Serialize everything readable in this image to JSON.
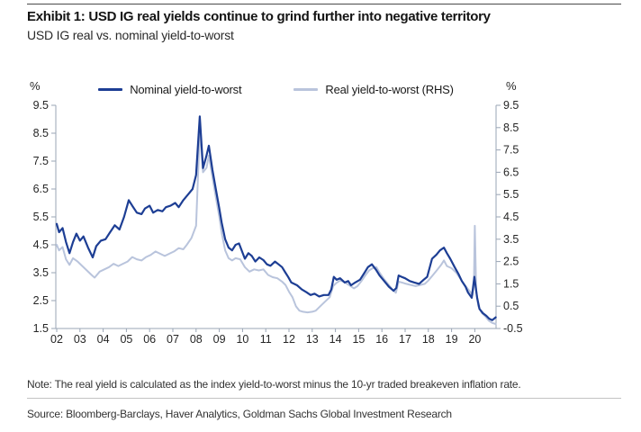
{
  "header": {
    "title": "Exhibit 1: USD IG real yields continue to grind further into negative territory",
    "subtitle": "USD IG real vs. nominal yield-to-worst"
  },
  "footer": {
    "note": "Note: The real yield is calculated as the index yield-to-worst minus the 10-yr traded breakeven inflation rate.",
    "source": "Source: Bloomberg-Barclays, Haver Analytics, Goldman Sachs Global Investment Research"
  },
  "colors": {
    "nominal_line": "#1D3E94",
    "real_line": "#B9C4DC",
    "axis": "#9AA5B5",
    "tick_text": "#262626"
  },
  "chart_data": {
    "type": "line",
    "title": "Exhibit 1: USD IG real yields continue to grind further into negative territory",
    "subtitle": "USD IG real vs. nominal yield-to-worst",
    "grid": false,
    "legend_position": "top-center",
    "left_axis": {
      "label": "%",
      "range": [
        1.5,
        9.5
      ],
      "tick_labels": [
        "9.5",
        "8.5",
        "7.5",
        "6.5",
        "5.5",
        "4.5",
        "3.5",
        "2.5",
        "1.5"
      ]
    },
    "right_axis": {
      "label": "%",
      "range": [
        -0.5,
        9.5
      ],
      "tick_labels": [
        "9.5",
        "8.5",
        "7.5",
        "6.5",
        "5.5",
        "4.5",
        "3.5",
        "2.5",
        "1.5",
        "0.5",
        "-0.5"
      ]
    },
    "x_axis": {
      "tick_labels": [
        "02",
        "03",
        "04",
        "05",
        "06",
        "07",
        "08",
        "09",
        "10",
        "11",
        "12",
        "13",
        "14",
        "15",
        "16",
        "17",
        "18",
        "19",
        "20"
      ],
      "tick_years": [
        2002,
        2003,
        2004,
        2005,
        2006,
        2007,
        2008,
        2009,
        2010,
        2011,
        2012,
        2013,
        2014,
        2015,
        2016,
        2017,
        2018,
        2019,
        2020
      ]
    },
    "series": [
      {
        "name": "Real yield-to-worst (RHS)",
        "axis": "right",
        "color": "#B9C4DC",
        "width": 2,
        "points": [
          [
            2002.0,
            3.25
          ],
          [
            2002.1,
            3.0
          ],
          [
            2002.25,
            3.15
          ],
          [
            2002.4,
            2.6
          ],
          [
            2002.55,
            2.35
          ],
          [
            2002.7,
            2.65
          ],
          [
            2002.9,
            2.5
          ],
          [
            2003.1,
            2.3
          ],
          [
            2003.3,
            2.1
          ],
          [
            2003.5,
            1.9
          ],
          [
            2003.63,
            1.78
          ],
          [
            2003.85,
            2.05
          ],
          [
            2004.05,
            2.15
          ],
          [
            2004.25,
            2.25
          ],
          [
            2004.45,
            2.4
          ],
          [
            2004.65,
            2.3
          ],
          [
            2004.85,
            2.4
          ],
          [
            2005.05,
            2.5
          ],
          [
            2005.25,
            2.7
          ],
          [
            2005.45,
            2.6
          ],
          [
            2005.65,
            2.55
          ],
          [
            2005.85,
            2.7
          ],
          [
            2006.05,
            2.8
          ],
          [
            2006.25,
            2.95
          ],
          [
            2006.45,
            2.85
          ],
          [
            2006.65,
            2.75
          ],
          [
            2006.85,
            2.85
          ],
          [
            2007.05,
            2.95
          ],
          [
            2007.25,
            3.1
          ],
          [
            2007.45,
            3.05
          ],
          [
            2007.6,
            3.25
          ],
          [
            2007.8,
            3.55
          ],
          [
            2008.0,
            4.1
          ],
          [
            2008.16,
            8.4
          ],
          [
            2008.3,
            6.5
          ],
          [
            2008.45,
            6.7
          ],
          [
            2008.55,
            7.25
          ],
          [
            2008.7,
            6.3
          ],
          [
            2008.85,
            5.4
          ],
          [
            2009.0,
            4.5
          ],
          [
            2009.1,
            3.8
          ],
          [
            2009.25,
            3.0
          ],
          [
            2009.4,
            2.65
          ],
          [
            2009.55,
            2.55
          ],
          [
            2009.7,
            2.65
          ],
          [
            2009.9,
            2.6
          ],
          [
            2010.1,
            2.25
          ],
          [
            2010.3,
            2.05
          ],
          [
            2010.5,
            2.15
          ],
          [
            2010.7,
            2.1
          ],
          [
            2010.9,
            2.15
          ],
          [
            2011.1,
            1.9
          ],
          [
            2011.3,
            1.8
          ],
          [
            2011.5,
            1.75
          ],
          [
            2011.7,
            1.6
          ],
          [
            2011.85,
            1.45
          ],
          [
            2012.0,
            1.15
          ],
          [
            2012.15,
            0.9
          ],
          [
            2012.3,
            0.5
          ],
          [
            2012.45,
            0.3
          ],
          [
            2012.6,
            0.25
          ],
          [
            2012.8,
            0.22
          ],
          [
            2013.0,
            0.25
          ],
          [
            2013.15,
            0.3
          ],
          [
            2013.35,
            0.5
          ],
          [
            2013.55,
            0.7
          ],
          [
            2013.75,
            0.9
          ],
          [
            2013.9,
            1.4
          ],
          [
            2014.05,
            1.55
          ],
          [
            2014.2,
            1.65
          ],
          [
            2014.35,
            1.6
          ],
          [
            2014.5,
            1.5
          ],
          [
            2014.65,
            1.4
          ],
          [
            2014.8,
            1.3
          ],
          [
            2014.95,
            1.4
          ],
          [
            2015.1,
            1.6
          ],
          [
            2015.3,
            1.9
          ],
          [
            2015.45,
            2.1
          ],
          [
            2015.6,
            2.2
          ],
          [
            2015.76,
            2.25
          ],
          [
            2015.9,
            2.0
          ],
          [
            2016.1,
            1.7
          ],
          [
            2016.3,
            1.45
          ],
          [
            2016.45,
            1.25
          ],
          [
            2016.6,
            1.1
          ],
          [
            2016.72,
            1.6
          ],
          [
            2016.9,
            1.55
          ],
          [
            2017.05,
            1.5
          ],
          [
            2017.25,
            1.45
          ],
          [
            2017.45,
            1.4
          ],
          [
            2017.65,
            1.45
          ],
          [
            2017.85,
            1.5
          ],
          [
            2018.0,
            1.65
          ],
          [
            2018.2,
            1.9
          ],
          [
            2018.4,
            2.15
          ],
          [
            2018.55,
            2.35
          ],
          [
            2018.67,
            2.55
          ],
          [
            2018.8,
            2.3
          ],
          [
            2019.0,
            2.2
          ],
          [
            2019.2,
            2.0
          ],
          [
            2019.4,
            1.7
          ],
          [
            2019.6,
            1.4
          ],
          [
            2019.8,
            1.15
          ],
          [
            2019.9,
            1.0
          ],
          [
            2019.96,
            1.4
          ],
          [
            2020.0,
            4.1
          ],
          [
            2020.06,
            1.2
          ],
          [
            2020.15,
            0.5
          ],
          [
            2020.3,
            0.2
          ],
          [
            2020.45,
            0.05
          ],
          [
            2020.6,
            -0.15
          ],
          [
            2020.75,
            -0.25
          ],
          [
            2020.9,
            -0.3
          ]
        ]
      },
      {
        "name": "Nominal yield-to-worst",
        "axis": "left",
        "color": "#1D3E94",
        "width": 2.2,
        "points": [
          [
            2002.0,
            5.25
          ],
          [
            2002.1,
            4.95
          ],
          [
            2002.25,
            5.1
          ],
          [
            2002.4,
            4.6
          ],
          [
            2002.55,
            4.2
          ],
          [
            2002.7,
            4.6
          ],
          [
            2002.85,
            4.9
          ],
          [
            2003.0,
            4.65
          ],
          [
            2003.15,
            4.8
          ],
          [
            2003.35,
            4.4
          ],
          [
            2003.55,
            4.05
          ],
          [
            2003.7,
            4.45
          ],
          [
            2003.9,
            4.65
          ],
          [
            2004.1,
            4.7
          ],
          [
            2004.3,
            4.95
          ],
          [
            2004.5,
            5.2
          ],
          [
            2004.7,
            5.05
          ],
          [
            2004.9,
            5.5
          ],
          [
            2005.1,
            6.1
          ],
          [
            2005.25,
            5.9
          ],
          [
            2005.45,
            5.65
          ],
          [
            2005.65,
            5.6
          ],
          [
            2005.8,
            5.8
          ],
          [
            2006.0,
            5.9
          ],
          [
            2006.15,
            5.65
          ],
          [
            2006.35,
            5.75
          ],
          [
            2006.55,
            5.7
          ],
          [
            2006.7,
            5.85
          ],
          [
            2006.9,
            5.9
          ],
          [
            2007.1,
            6.0
          ],
          [
            2007.25,
            5.85
          ],
          [
            2007.45,
            6.1
          ],
          [
            2007.65,
            6.3
          ],
          [
            2007.85,
            6.5
          ],
          [
            2008.0,
            7.0
          ],
          [
            2008.16,
            9.1
          ],
          [
            2008.3,
            7.25
          ],
          [
            2008.45,
            7.7
          ],
          [
            2008.55,
            8.05
          ],
          [
            2008.7,
            7.2
          ],
          [
            2008.85,
            6.5
          ],
          [
            2009.0,
            5.8
          ],
          [
            2009.1,
            5.3
          ],
          [
            2009.25,
            4.7
          ],
          [
            2009.4,
            4.4
          ],
          [
            2009.55,
            4.3
          ],
          [
            2009.7,
            4.5
          ],
          [
            2009.85,
            4.55
          ],
          [
            2010.1,
            4.0
          ],
          [
            2010.25,
            4.2
          ],
          [
            2010.4,
            4.1
          ],
          [
            2010.55,
            3.9
          ],
          [
            2010.72,
            4.05
          ],
          [
            2010.9,
            3.95
          ],
          [
            2011.05,
            3.8
          ],
          [
            2011.2,
            3.75
          ],
          [
            2011.4,
            3.9
          ],
          [
            2011.55,
            3.8
          ],
          [
            2011.7,
            3.7
          ],
          [
            2011.85,
            3.5
          ],
          [
            2011.96,
            3.35
          ],
          [
            2012.1,
            3.15
          ],
          [
            2012.35,
            3.05
          ],
          [
            2012.55,
            2.9
          ],
          [
            2012.75,
            2.8
          ],
          [
            2012.93,
            2.7
          ],
          [
            2013.1,
            2.75
          ],
          [
            2013.3,
            2.65
          ],
          [
            2013.5,
            2.7
          ],
          [
            2013.7,
            2.7
          ],
          [
            2013.82,
            2.9
          ],
          [
            2013.93,
            3.35
          ],
          [
            2014.05,
            3.25
          ],
          [
            2014.2,
            3.3
          ],
          [
            2014.4,
            3.15
          ],
          [
            2014.55,
            3.2
          ],
          [
            2014.67,
            3.05
          ],
          [
            2014.85,
            3.15
          ],
          [
            2015.06,
            3.25
          ],
          [
            2015.25,
            3.5
          ],
          [
            2015.4,
            3.7
          ],
          [
            2015.57,
            3.8
          ],
          [
            2015.75,
            3.6
          ],
          [
            2015.9,
            3.4
          ],
          [
            2016.1,
            3.2
          ],
          [
            2016.3,
            3.0
          ],
          [
            2016.5,
            2.85
          ],
          [
            2016.62,
            2.95
          ],
          [
            2016.72,
            3.4
          ],
          [
            2016.85,
            3.35
          ],
          [
            2017.0,
            3.3
          ],
          [
            2017.2,
            3.2
          ],
          [
            2017.4,
            3.15
          ],
          [
            2017.6,
            3.1
          ],
          [
            2017.8,
            3.25
          ],
          [
            2017.95,
            3.35
          ],
          [
            2018.16,
            4.0
          ],
          [
            2018.35,
            4.15
          ],
          [
            2018.5,
            4.3
          ],
          [
            2018.67,
            4.4
          ],
          [
            2018.8,
            4.2
          ],
          [
            2018.94,
            4.0
          ],
          [
            2019.13,
            3.7
          ],
          [
            2019.3,
            3.45
          ],
          [
            2019.44,
            3.2
          ],
          [
            2019.6,
            3.0
          ],
          [
            2019.7,
            2.8
          ],
          [
            2019.87,
            2.6
          ],
          [
            2019.98,
            3.35
          ],
          [
            2020.1,
            2.6
          ],
          [
            2020.2,
            2.2
          ],
          [
            2020.35,
            2.05
          ],
          [
            2020.5,
            1.95
          ],
          [
            2020.62,
            1.85
          ],
          [
            2020.75,
            1.8
          ],
          [
            2020.9,
            1.9
          ]
        ]
      }
    ]
  }
}
